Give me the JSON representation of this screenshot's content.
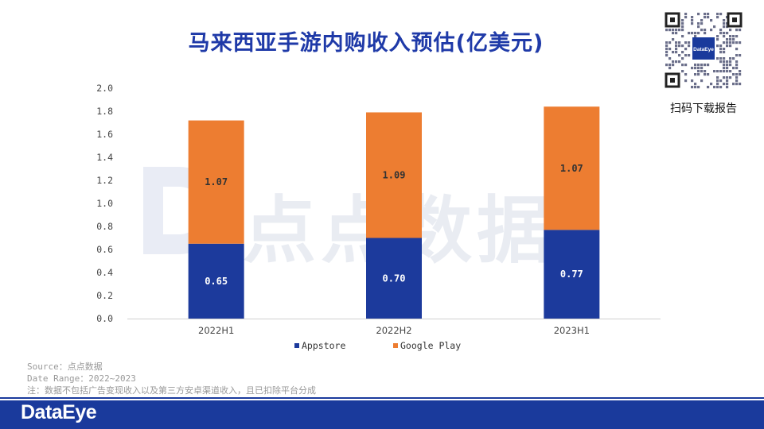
{
  "title": "马来西亚手游内购收入预估(亿美元)",
  "qr": {
    "inner_label": "DataEye",
    "caption": "扫码下载报告"
  },
  "watermark": "点点数据",
  "notes": {
    "source": "Source：点点数据",
    "date_range": "Date Range：2022~2023",
    "note": "注：数据不包括广告变现收入以及第三方安卓渠道收入，且已扣除平台分成"
  },
  "footer": {
    "logo": "DataEye"
  },
  "colors": {
    "appstore": "#1c3a9c",
    "googleplay": "#ed7d31",
    "title": "#1f3aa8",
    "footer": "#1a3a9c"
  },
  "chart_data": {
    "type": "bar",
    "stacked": true,
    "title": "马来西亚手游内购收入预估(亿美元)",
    "categories": [
      "2022H1",
      "2022H2",
      "2023H1"
    ],
    "series": [
      {
        "name": "Appstore",
        "values": [
          0.65,
          0.7,
          0.77
        ],
        "labels": [
          "0.65",
          "0.70",
          "0.77"
        ]
      },
      {
        "name": "Google Play",
        "values": [
          1.07,
          1.09,
          1.07
        ],
        "labels": [
          "1.07",
          "1.09",
          "1.07"
        ]
      }
    ],
    "ylim": [
      0,
      2.0
    ],
    "yticks": [
      "0.0",
      "0.2",
      "0.4",
      "0.6",
      "0.8",
      "1.0",
      "1.2",
      "1.4",
      "1.6",
      "1.8",
      "2.0"
    ],
    "legend_position": "bottom",
    "xlabel": "",
    "ylabel": ""
  }
}
